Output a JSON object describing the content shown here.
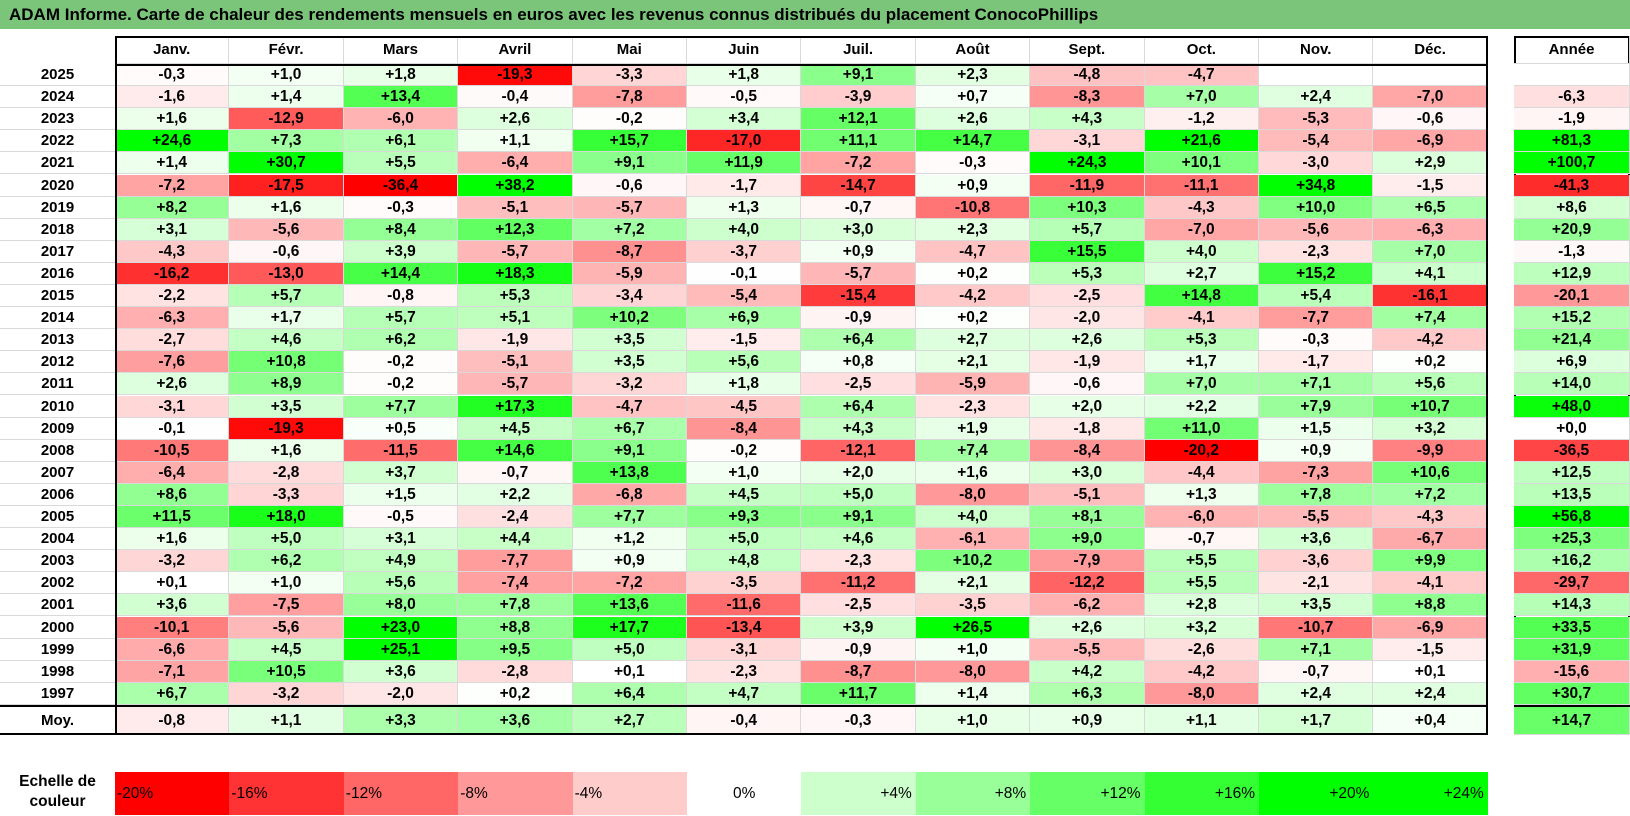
{
  "title": "ADAM Informe. Carte de chaleur des rendements mensuels en euros avec les revenus connus distribués du placement ConocoPhillips",
  "chart_data": {
    "type": "heatmap",
    "title": "ADAM Informe. Carte de chaleur des rendements mensuels en euros avec les revenus connus distribués du placement ConocoPhillips",
    "months": [
      "Janv.",
      "Févr.",
      "Mars",
      "Avril",
      "Mai",
      "Juin",
      "Juil.",
      "Août",
      "Sept.",
      "Oct.",
      "Nov.",
      "Déc."
    ],
    "annual_label": "Année",
    "rows": [
      {
        "year": "2025",
        "values": [
          "-0,3",
          "+1,0",
          "+1,8",
          "-19,3",
          "-3,3",
          "+1,8",
          "+9,1",
          "+2,3",
          "-4,8",
          "-4,7",
          "",
          ""
        ],
        "annual": ""
      },
      {
        "year": "2024",
        "values": [
          "-1,6",
          "+1,4",
          "+13,4",
          "-0,4",
          "-7,8",
          "-0,5",
          "-3,9",
          "+0,7",
          "-8,3",
          "+7,0",
          "+2,4",
          "-7,0"
        ],
        "annual": "-6,3"
      },
      {
        "year": "2023",
        "values": [
          "+1,6",
          "-12,9",
          "-6,0",
          "+2,6",
          "-0,2",
          "+3,4",
          "+12,1",
          "+2,6",
          "+4,3",
          "-1,2",
          "-5,3",
          "-0,6"
        ],
        "annual": "-1,9"
      },
      {
        "year": "2022",
        "values": [
          "+24,6",
          "+7,3",
          "+6,1",
          "+1,1",
          "+15,7",
          "-17,0",
          "+11,1",
          "+14,7",
          "-3,1",
          "+21,6",
          "-5,4",
          "-6,9"
        ],
        "annual": "+81,3"
      },
      {
        "year": "2021",
        "values": [
          "+1,4",
          "+30,7",
          "+5,5",
          "-6,4",
          "+9,1",
          "+11,9",
          "-7,2",
          "-0,3",
          "+24,3",
          "+10,1",
          "-3,0",
          "+2,9"
        ],
        "annual": "+100,7"
      },
      {
        "year": "2020",
        "values": [
          "-7,2",
          "-17,5",
          "-36,4",
          "+38,2",
          "-0,6",
          "-1,7",
          "-14,7",
          "+0,9",
          "-11,9",
          "-11,1",
          "+34,8",
          "-1,5"
        ],
        "annual": "-41,3"
      },
      {
        "year": "2019",
        "values": [
          "+8,2",
          "+1,6",
          "-0,3",
          "-5,1",
          "-5,7",
          "+1,3",
          "-0,7",
          "-10,8",
          "+10,3",
          "-4,3",
          "+10,0",
          "+6,5"
        ],
        "annual": "+8,6"
      },
      {
        "year": "2018",
        "values": [
          "+3,1",
          "-5,6",
          "+8,4",
          "+12,3",
          "+7,2",
          "+4,0",
          "+3,0",
          "+2,3",
          "+5,7",
          "-7,0",
          "-5,6",
          "-6,3"
        ],
        "annual": "+20,9"
      },
      {
        "year": "2017",
        "values": [
          "-4,3",
          "-0,6",
          "+3,9",
          "-5,7",
          "-8,7",
          "-3,7",
          "+0,9",
          "-4,7",
          "+15,5",
          "+4,0",
          "-2,3",
          "+7,0"
        ],
        "annual": "-1,3"
      },
      {
        "year": "2016",
        "values": [
          "-16,2",
          "-13,0",
          "+14,4",
          "+18,3",
          "-5,9",
          "-0,1",
          "-5,7",
          "+0,2",
          "+5,3",
          "+2,7",
          "+15,2",
          "+4,1"
        ],
        "annual": "+12,9"
      },
      {
        "year": "2015",
        "values": [
          "-2,2",
          "+5,7",
          "-0,8",
          "+5,3",
          "-3,4",
          "-5,4",
          "-15,4",
          "-4,2",
          "-2,5",
          "+14,8",
          "+5,4",
          "-16,1"
        ],
        "annual": "-20,1"
      },
      {
        "year": "2014",
        "values": [
          "-6,3",
          "+1,7",
          "+5,7",
          "+5,1",
          "+10,2",
          "+6,9",
          "-0,9",
          "+0,2",
          "-2,0",
          "-4,1",
          "-7,7",
          "+7,4"
        ],
        "annual": "+15,2"
      },
      {
        "year": "2013",
        "values": [
          "-2,7",
          "+4,6",
          "+6,2",
          "-1,9",
          "+3,5",
          "-1,5",
          "+6,4",
          "+2,7",
          "+2,6",
          "+5,3",
          "-0,3",
          "-4,2"
        ],
        "annual": "+21,4"
      },
      {
        "year": "2012",
        "values": [
          "-7,6",
          "+10,8",
          "-0,2",
          "-5,1",
          "+3,5",
          "+5,6",
          "+0,8",
          "+2,1",
          "-1,9",
          "+1,7",
          "-1,7",
          "+0,2"
        ],
        "annual": "+6,9"
      },
      {
        "year": "2011",
        "values": [
          "+2,6",
          "+8,9",
          "-0,2",
          "-5,7",
          "-3,2",
          "+1,8",
          "-2,5",
          "-5,9",
          "-0,6",
          "+7,0",
          "+7,1",
          "+5,6"
        ],
        "annual": "+14,0"
      },
      {
        "year": "2010",
        "values": [
          "-3,1",
          "+3,5",
          "+7,7",
          "+17,3",
          "-4,7",
          "-4,5",
          "+6,4",
          "-2,3",
          "+2,0",
          "+2,2",
          "+7,9",
          "+10,7"
        ],
        "annual": "+48,0"
      },
      {
        "year": "2009",
        "values": [
          "-0,1",
          "-19,3",
          "+0,5",
          "+4,5",
          "+6,7",
          "-8,4",
          "+4,3",
          "+1,9",
          "-1,8",
          "+11,0",
          "+1,5",
          "+3,2"
        ],
        "annual": "+0,0"
      },
      {
        "year": "2008",
        "values": [
          "-10,5",
          "+1,6",
          "-11,5",
          "+14,6",
          "+9,1",
          "-0,2",
          "-12,1",
          "+7,4",
          "-8,4",
          "-20,2",
          "+0,9",
          "-9,9"
        ],
        "annual": "-36,5"
      },
      {
        "year": "2007",
        "values": [
          "-6,4",
          "-2,8",
          "+3,7",
          "-0,7",
          "+13,8",
          "+1,0",
          "+2,0",
          "+1,6",
          "+3,0",
          "-4,4",
          "-7,3",
          "+10,6"
        ],
        "annual": "+12,5"
      },
      {
        "year": "2006",
        "values": [
          "+8,6",
          "-3,3",
          "+1,5",
          "+2,2",
          "-6,8",
          "+4,5",
          "+5,0",
          "-8,0",
          "-5,1",
          "+1,3",
          "+7,8",
          "+7,2"
        ],
        "annual": "+13,5"
      },
      {
        "year": "2005",
        "values": [
          "+11,5",
          "+18,0",
          "-0,5",
          "-2,4",
          "+7,7",
          "+9,3",
          "+9,1",
          "+4,0",
          "+8,1",
          "-6,0",
          "-5,5",
          "-4,3"
        ],
        "annual": "+56,8"
      },
      {
        "year": "2004",
        "values": [
          "+1,6",
          "+5,0",
          "+3,1",
          "+4,4",
          "+1,2",
          "+5,0",
          "+4,6",
          "-6,1",
          "+9,0",
          "-0,7",
          "+3,6",
          "-6,7"
        ],
        "annual": "+25,3"
      },
      {
        "year": "2003",
        "values": [
          "-3,2",
          "+6,2",
          "+4,9",
          "-7,7",
          "+0,9",
          "+4,8",
          "-2,3",
          "+10,2",
          "-7,9",
          "+5,5",
          "-3,6",
          "+9,9"
        ],
        "annual": "+16,2"
      },
      {
        "year": "2002",
        "values": [
          "+0,1",
          "+1,0",
          "+5,6",
          "-7,4",
          "-7,2",
          "-3,5",
          "-11,2",
          "+2,1",
          "-12,2",
          "+5,5",
          "-2,1",
          "-4,1"
        ],
        "annual": "-29,7"
      },
      {
        "year": "2001",
        "values": [
          "+3,6",
          "-7,5",
          "+8,0",
          "+7,8",
          "+13,6",
          "-11,6",
          "-2,5",
          "-3,5",
          "-6,2",
          "+2,8",
          "+3,5",
          "+8,8"
        ],
        "annual": "+14,3"
      },
      {
        "year": "2000",
        "values": [
          "-10,1",
          "-5,6",
          "+23,0",
          "+8,8",
          "+17,7",
          "-13,4",
          "+3,9",
          "+26,5",
          "+2,6",
          "+3,2",
          "-10,7",
          "-6,9"
        ],
        "annual": "+33,5"
      },
      {
        "year": "1999",
        "values": [
          "-6,6",
          "+4,5",
          "+25,1",
          "+9,5",
          "+5,0",
          "-3,1",
          "-0,9",
          "+1,0",
          "-5,5",
          "-2,6",
          "+7,1",
          "-1,5"
        ],
        "annual": "+31,9"
      },
      {
        "year": "1998",
        "values": [
          "-7,1",
          "+10,5",
          "+3,6",
          "-2,8",
          "+0,1",
          "-2,3",
          "-8,7",
          "-8,0",
          "+4,2",
          "-4,2",
          "-0,7",
          "+0,1"
        ],
        "annual": "-15,6"
      },
      {
        "year": "1997",
        "values": [
          "+6,7",
          "-3,2",
          "-2,0",
          "+0,2",
          "+6,4",
          "+4,7",
          "+11,7",
          "+1,4",
          "+6,3",
          "-8,0",
          "+2,4",
          "+2,4"
        ],
        "annual": "+30,7"
      }
    ],
    "average": {
      "label": "Moy.",
      "values": [
        "-0,8",
        "+1,1",
        "+3,3",
        "+3,6",
        "+2,7",
        "-0,4",
        "-0,3",
        "+1,0",
        "+0,9",
        "+1,1",
        "+1,7",
        "+0,4"
      ],
      "annual": "+14,7"
    },
    "scale": {
      "label": "Echelle de couleur",
      "stops": [
        "-20%",
        "-16%",
        "-12%",
        "-8%",
        "-4%",
        "0%",
        "+4%",
        "+8%",
        "+12%",
        "+16%",
        "+20%",
        "+24%"
      ],
      "stop_values": [
        -20,
        -16,
        -12,
        -8,
        -4,
        0,
        4,
        8,
        12,
        16,
        20,
        24
      ]
    },
    "colors": {
      "negative": "#ff0000",
      "neutral": "#ffffff",
      "positive": "#00ff00",
      "title_bar": "#7bc57b"
    }
  }
}
